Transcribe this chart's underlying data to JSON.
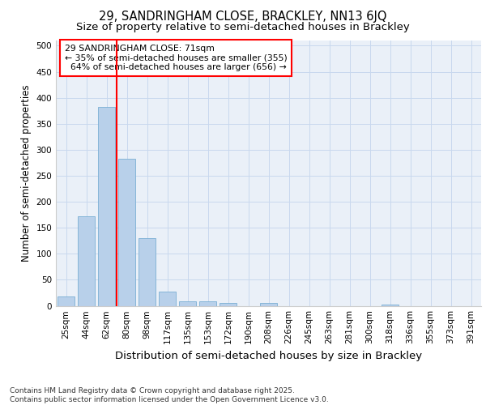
{
  "title_line1": "29, SANDRINGHAM CLOSE, BRACKLEY, NN13 6JQ",
  "title_line2": "Size of property relative to semi-detached houses in Brackley",
  "xlabel": "Distribution of semi-detached houses by size in Brackley",
  "ylabel": "Number of semi-detached properties",
  "categories": [
    "25sqm",
    "44sqm",
    "62sqm",
    "80sqm",
    "98sqm",
    "117sqm",
    "135sqm",
    "153sqm",
    "172sqm",
    "190sqm",
    "208sqm",
    "226sqm",
    "245sqm",
    "263sqm",
    "281sqm",
    "300sqm",
    "318sqm",
    "336sqm",
    "355sqm",
    "373sqm",
    "391sqm"
  ],
  "values": [
    18,
    172,
    382,
    282,
    130,
    28,
    9,
    8,
    6,
    0,
    5,
    0,
    0,
    0,
    0,
    0,
    2,
    0,
    0,
    0,
    0
  ],
  "bar_color": "#b8d0ea",
  "bar_edgecolor": "#7aafd4",
  "grid_color": "#c8d8ee",
  "background_color": "#eaf0f8",
  "vline_x": 2.5,
  "vline_color": "red",
  "annotation_text": "29 SANDRINGHAM CLOSE: 71sqm\n← 35% of semi-detached houses are smaller (355)\n  64% of semi-detached houses are larger (656) →",
  "annotation_box_color": "red",
  "footnote": "Contains HM Land Registry data © Crown copyright and database right 2025.\nContains public sector information licensed under the Open Government Licence v3.0.",
  "ylim": [
    0,
    510
  ],
  "yticks": [
    0,
    50,
    100,
    150,
    200,
    250,
    300,
    350,
    400,
    450,
    500
  ],
  "title1_fontsize": 10.5,
  "title2_fontsize": 9.5,
  "ylabel_fontsize": 8.5,
  "xlabel_fontsize": 9.5,
  "tick_fontsize": 7.5,
  "footnote_fontsize": 6.5
}
